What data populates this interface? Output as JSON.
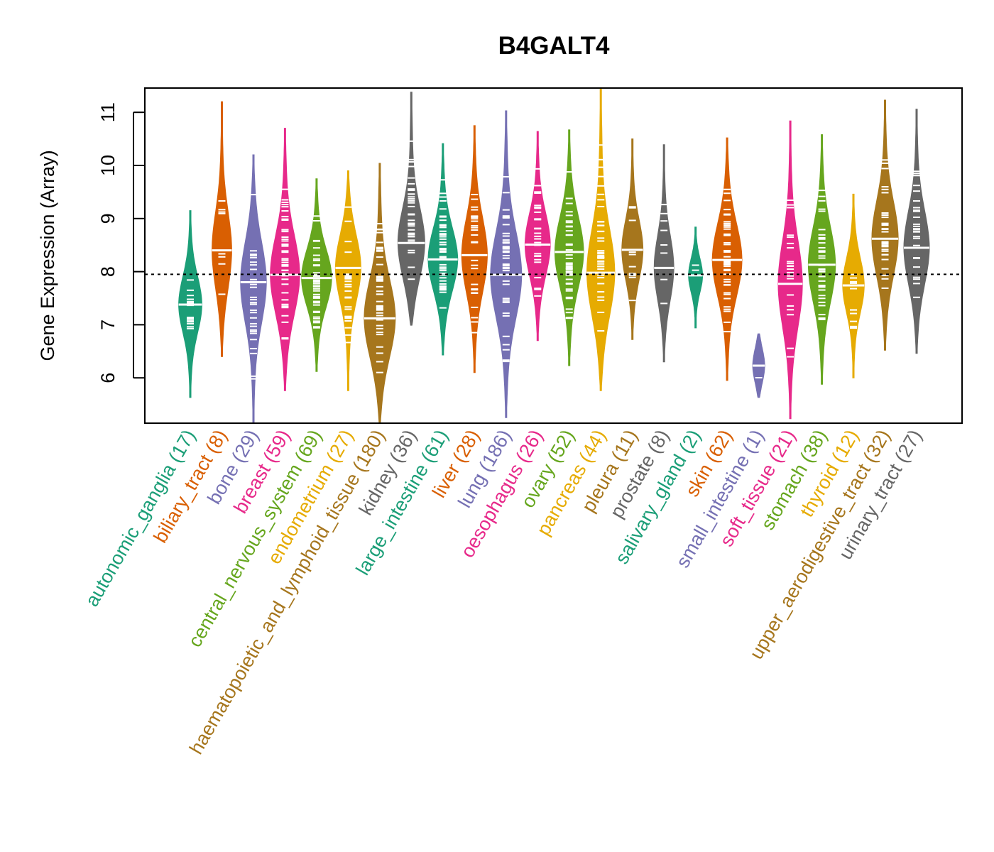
{
  "chart_data": {
    "type": "violin",
    "title": "B4GALT4",
    "xlabel": "",
    "ylabel": "Gene Expression (Array)",
    "ylim": [
      5.15,
      11.5
    ],
    "yticks": [
      6,
      7,
      8,
      9,
      10,
      11
    ],
    "reference_line": 7.95,
    "grid": false,
    "legend": "none",
    "categories": [
      {
        "name": "autonomic_ganglia",
        "n": 17,
        "color": "#1b9e77",
        "min": 5.63,
        "max": 9.15,
        "median": 7.38
      },
      {
        "name": "biliary_tract",
        "n": 8,
        "color": "#d95f02",
        "min": 6.4,
        "max": 11.2,
        "median": 8.4
      },
      {
        "name": "bone",
        "n": 29,
        "color": "#7570b3",
        "min": 5.15,
        "max": 10.2,
        "median": 7.8
      },
      {
        "name": "breast",
        "n": 59,
        "color": "#e7298a",
        "min": 5.76,
        "max": 10.7,
        "median": 7.94
      },
      {
        "name": "central_nervous_system",
        "n": 69,
        "color": "#66a61e",
        "min": 6.12,
        "max": 9.75,
        "median": 7.88
      },
      {
        "name": "endometrium",
        "n": 27,
        "color": "#e6ab02",
        "min": 5.76,
        "max": 9.9,
        "median": 8.07
      },
      {
        "name": "haematopoietic_and_lymphoid_tissue",
        "n": 180,
        "color": "#a6761d",
        "min": 5.15,
        "max": 10.04,
        "median": 7.12
      },
      {
        "name": "kidney",
        "n": 36,
        "color": "#666666",
        "min": 6.99,
        "max": 11.38,
        "median": 8.54
      },
      {
        "name": "large_intestine",
        "n": 61,
        "color": "#1b9e77",
        "min": 6.43,
        "max": 10.41,
        "median": 8.23
      },
      {
        "name": "liver",
        "n": 28,
        "color": "#d95f02",
        "min": 6.1,
        "max": 10.75,
        "median": 8.31
      },
      {
        "name": "lung",
        "n": 186,
        "color": "#7570b3",
        "min": 5.25,
        "max": 11.03,
        "median": 7.94
      },
      {
        "name": "oesophagus",
        "n": 26,
        "color": "#e7298a",
        "min": 6.7,
        "max": 10.64,
        "median": 8.51
      },
      {
        "name": "ovary",
        "n": 52,
        "color": "#66a61e",
        "min": 6.23,
        "max": 10.67,
        "median": 8.37
      },
      {
        "name": "pancreas",
        "n": 44,
        "color": "#e6ab02",
        "min": 5.76,
        "max": 11.46,
        "median": 7.98
      },
      {
        "name": "pleura",
        "n": 11,
        "color": "#a6761d",
        "min": 6.72,
        "max": 10.5,
        "median": 8.41
      },
      {
        "name": "prostate",
        "n": 8,
        "color": "#666666",
        "min": 6.3,
        "max": 10.39,
        "median": 8.07
      },
      {
        "name": "salivary_gland",
        "n": 2,
        "color": "#1b9e77",
        "min": 6.94,
        "max": 8.84,
        "median": 7.93
      },
      {
        "name": "skin",
        "n": 62,
        "color": "#d95f02",
        "min": 5.95,
        "max": 10.52,
        "median": 8.22
      },
      {
        "name": "small_intestine",
        "n": 1,
        "color": "#7570b3",
        "min": 5.63,
        "max": 6.83,
        "median": 6.23
      },
      {
        "name": "soft_tissue",
        "n": 21,
        "color": "#e7298a",
        "min": 5.23,
        "max": 10.84,
        "median": 7.77
      },
      {
        "name": "stomach",
        "n": 38,
        "color": "#66a61e",
        "min": 5.88,
        "max": 10.58,
        "median": 8.13
      },
      {
        "name": "thyroid",
        "n": 12,
        "color": "#e6ab02",
        "min": 6.0,
        "max": 9.46,
        "median": 7.74
      },
      {
        "name": "upper_aerodigestive_tract",
        "n": 32,
        "color": "#a6761d",
        "min": 6.52,
        "max": 11.23,
        "median": 8.62
      },
      {
        "name": "urinary_tract",
        "n": 27,
        "color": "#666666",
        "min": 6.46,
        "max": 11.06,
        "median": 8.45
      }
    ]
  }
}
